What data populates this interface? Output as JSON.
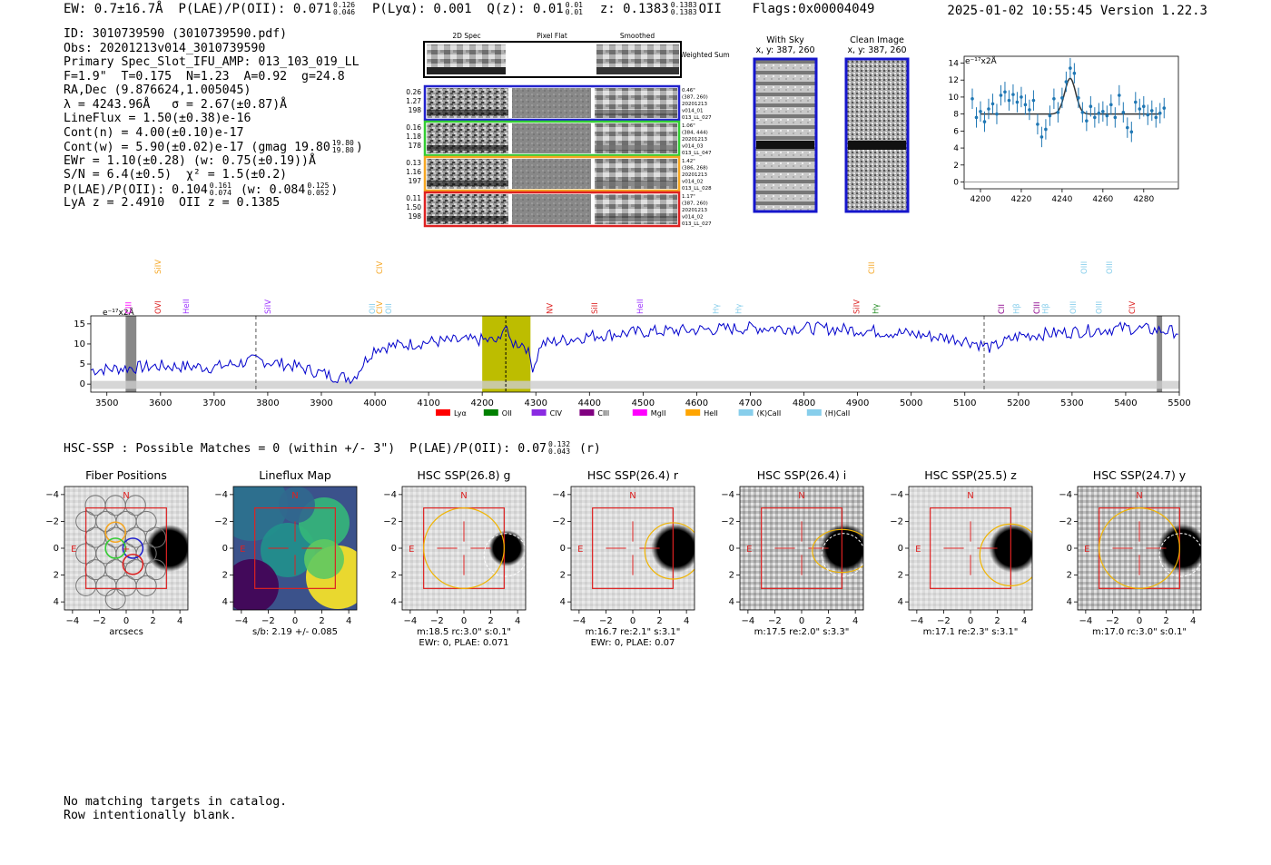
{
  "header": {
    "ew_label": "EW: 0.7±16.7Å",
    "plae_label": "P(LAE)/P(OII): 0.071",
    "plae_hi": "0.126",
    "plae_lo": "0.046",
    "plya_label": "P(Lyα): 0.001",
    "qz_label": "Q(z): 0.01",
    "qz_hi": "0.01",
    "qz_lo": "0.01",
    "z_label": "z: 0.1383",
    "z_hi": "0.1383",
    "z_lo": "0.1383",
    "z_line": "OII",
    "flags": "Flags:0x00004049",
    "timestamp": "2025-01-02 10:55:45",
    "version": "Version 1.22.3"
  },
  "info": {
    "id": "ID: 3010739590 (3010739590.pdf)",
    "obs": "Obs: 20201213v014_3010739590",
    "primary": "Primary Spec_Slot_IFU_AMP: 013_103_019_LL",
    "fit": "F=1.9\"  T=0.175  N=1.23  A=0.92  g=24.8",
    "radec": "RA,Dec (9.876624,1.005045)",
    "lambda": "λ = 4243.96Å   σ = 2.67(±0.87)Å",
    "lineflux": "LineFlux = 1.50(±0.38)e-16",
    "contn": "Cont(n) = 4.00(±0.10)e-17",
    "contw": "Cont(w) = 5.90(±0.02)e-17 (gmag 19.80",
    "contw_hi": "19.80",
    "contw_lo": "19.80",
    "ewr": "EWr = 1.10(±0.28) (w: 0.75(±0.19))Å",
    "sn": "S/N = 6.4(±0.5)  χ² = 1.5(±0.2)",
    "plae": "P(LAE)/P(OII): 0.104",
    "plae_hi": "0.161",
    "plae_lo": "0.074",
    "plae_w": "(w: 0.084",
    "plae_w_hi": "0.125",
    "plae_w_lo": "0.052",
    "lya": "LyA z = 2.4910  OII z = 0.1385"
  },
  "cutouts": {
    "col_headers": [
      "2D Spec",
      "Pixel Flat",
      "Smoothed"
    ],
    "weighted_sum": "Weighted Sum",
    "rows": [
      {
        "left": [
          "0.26",
          "1.27",
          "198"
        ],
        "right": [
          "0.46\"",
          "(387, 260)",
          "20201213",
          "v014_01",
          "013_LL_027"
        ],
        "color": "#2222cc"
      },
      {
        "left": [
          "0.16",
          "1.18",
          "178"
        ],
        "right": [
          "1.06\"",
          "(384, 444)",
          "20201213",
          "v014_03",
          "013_LL_047"
        ],
        "color": "#33cc33"
      },
      {
        "left": [
          "0.13",
          "1.16",
          "197"
        ],
        "right": [
          "1.42\"",
          "(386, 268)",
          "20201213",
          "v014_02",
          "013_LL_028"
        ],
        "color": "#f5a623"
      },
      {
        "left": [
          "0.11",
          "1.50",
          "198"
        ],
        "right": [
          "1.17\"",
          "(387, 260)",
          "20201213",
          "v014_02",
          "013_LL_027"
        ],
        "color": "#dd2222"
      }
    ],
    "with_sky_title": "With Sky",
    "with_sky_coords": "x, y: 387, 260",
    "clean_title": "Clean Image",
    "clean_coords": "x, y: 387, 260"
  },
  "fit_plot": {
    "unit": "e⁻¹⁷x2Å",
    "x_ticks": [
      "4200",
      "4220",
      "4240",
      "4260",
      "4280"
    ],
    "y_ticks": [
      "0",
      "2",
      "4",
      "6",
      "8",
      "10",
      "12",
      "14"
    ],
    "xlim": [
      4192,
      4297
    ],
    "ylim": [
      -0.8,
      14.8
    ],
    "x": [
      4196,
      4198,
      4200,
      4202,
      4204,
      4206,
      4208,
      4210,
      4212,
      4214,
      4216,
      4218,
      4220,
      4222,
      4224,
      4226,
      4228,
      4230,
      4232,
      4234,
      4236,
      4238,
      4240,
      4242,
      4244,
      4246,
      4248,
      4250,
      4252,
      4254,
      4256,
      4258,
      4260,
      4262,
      4264,
      4266,
      4268,
      4270,
      4272,
      4274,
      4276,
      4278,
      4280,
      4282,
      4284,
      4286,
      4288,
      4290
    ],
    "y": [
      9.8,
      7.6,
      8.3,
      7.1,
      8.6,
      9.2,
      8.0,
      10.2,
      10.6,
      9.6,
      10.3,
      9.4,
      10.0,
      9.1,
      8.5,
      9.6,
      6.8,
      5.3,
      6.2,
      7.8,
      9.8,
      8.2,
      9.9,
      11.8,
      13.4,
      12.8,
      9.9,
      8.2,
      7.2,
      8.9,
      7.6,
      8.1,
      8.3,
      7.8,
      9.1,
      7.6,
      10.2,
      8.2,
      6.4,
      5.9,
      9.4,
      8.6,
      8.9,
      7.9,
      8.4,
      7.6,
      8.1,
      8.7
    ],
    "err": 1.2,
    "model_baseline": 8.0,
    "model_peak": 4.2,
    "model_center": 4243.96,
    "model_sigma": 2.67
  },
  "spectrum": {
    "unit": "e⁻¹⁷x2Å",
    "x_ticks": [
      "3500",
      "3600",
      "3700",
      "3800",
      "3900",
      "4000",
      "4100",
      "4200",
      "4300",
      "4400",
      "4500",
      "4600",
      "4700",
      "4800",
      "4900",
      "5000",
      "5100",
      "5200",
      "5300",
      "5400",
      "5500"
    ],
    "y_ticks": [
      "0",
      "5",
      "10",
      "15"
    ],
    "xlim": [
      3470,
      5500
    ],
    "ylim": [
      -2,
      17
    ],
    "highlight": [
      4200,
      4290
    ],
    "center": 4243.96,
    "dashed": [
      3778,
      5136
    ],
    "gray_bands": [
      [
        3535,
        3555
      ],
      [
        5458,
        5468
      ]
    ],
    "lines_top": [
      {
        "label": "SiIV",
        "x": 3595,
        "color": "#f5a623"
      },
      {
        "label": "CIV",
        "x": 4008,
        "color": "#f5a623"
      },
      {
        "label": "CIII",
        "x": 4926,
        "color": "#f5a623"
      },
      {
        "label": "OIII",
        "x": 5322,
        "color": "#87ceeb"
      },
      {
        "label": "OIII",
        "x": 5370,
        "color": "#87ceeb"
      }
    ],
    "lines_bottom": [
      {
        "label": "CIII",
        "x": 3540,
        "color": "#ff00ff"
      },
      {
        "label": "OVI",
        "x": 3595,
        "color": "#dd2222"
      },
      {
        "label": "HeII",
        "x": 3648,
        "color": "#9b30ff"
      },
      {
        "label": "SiIV",
        "x": 3800,
        "color": "#9b30ff"
      },
      {
        "label": "OII",
        "x": 3995,
        "color": "#87ceeb"
      },
      {
        "label": "CIV",
        "x": 4008,
        "color": "#f5a623"
      },
      {
        "label": "OII",
        "x": 4025,
        "color": "#87ceeb"
      },
      {
        "label": "NV",
        "x": 4326,
        "color": "#dd2222"
      },
      {
        "label": "SiII",
        "x": 4410,
        "color": "#dd2222"
      },
      {
        "label": "HeII",
        "x": 4494,
        "color": "#9b30ff"
      },
      {
        "label": "Hγ",
        "x": 4636,
        "color": "#87ceeb"
      },
      {
        "label": "Hγ",
        "x": 4678,
        "color": "#87ceeb"
      },
      {
        "label": "SiIV",
        "x": 4898,
        "color": "#dd2222"
      },
      {
        "label": "Hγ",
        "x": 4934,
        "color": "#228b22"
      },
      {
        "label": "CII",
        "x": 5168,
        "color": "#8b008b"
      },
      {
        "label": "Hβ",
        "x": 5196,
        "color": "#87ceeb"
      },
      {
        "label": "CIII",
        "x": 5234,
        "color": "#8b008b"
      },
      {
        "label": "Hβ",
        "x": 5250,
        "color": "#87ceeb"
      },
      {
        "label": "OIII",
        "x": 5302,
        "color": "#87ceeb"
      },
      {
        "label": "OIII",
        "x": 5350,
        "color": "#87ceeb"
      },
      {
        "label": "CIV",
        "x": 5412,
        "color": "#dd2222"
      }
    ],
    "legend": [
      {
        "label": "Lyα",
        "color": "#ff0000"
      },
      {
        "label": "OII",
        "color": "#008000"
      },
      {
        "label": "CIV",
        "color": "#8a2be2"
      },
      {
        "label": "CIII",
        "color": "#800080"
      },
      {
        "label": "MgII",
        "color": "#ff00ff"
      },
      {
        "label": "HeII",
        "color": "#ffa500"
      },
      {
        "label": "(K)CaII",
        "color": "#87ceeb"
      },
      {
        "label": "(H)CaII",
        "color": "#87ceeb"
      }
    ],
    "series_levels": [
      [
        3470,
        3.5
      ],
      [
        3600,
        4.5
      ],
      [
        3700,
        4.2
      ],
      [
        3780,
        6
      ],
      [
        3850,
        4.5
      ],
      [
        3920,
        2.0
      ],
      [
        3960,
        1.5
      ],
      [
        3980,
        5.5
      ],
      [
        4000,
        9
      ],
      [
        4100,
        10.5
      ],
      [
        4200,
        11
      ],
      [
        4280,
        10
      ],
      [
        4295,
        4
      ],
      [
        4310,
        10
      ],
      [
        4400,
        12
      ],
      [
        4500,
        13
      ],
      [
        4600,
        13.5
      ],
      [
        4700,
        14
      ],
      [
        4800,
        14
      ],
      [
        4900,
        13.5
      ],
      [
        5000,
        12.5
      ],
      [
        5100,
        11
      ],
      [
        5150,
        9
      ],
      [
        5200,
        12
      ],
      [
        5300,
        13
      ],
      [
        5400,
        14
      ],
      [
        5500,
        13
      ]
    ]
  },
  "hsc": {
    "summary": "HSC-SSP : Possible Matches = 0 (within +/- 3\")  P(LAE)/P(OII): 0.07",
    "summary_hi": "0.132",
    "summary_lo": "0.043",
    "summary_band": "(r)",
    "compass_n": "N",
    "compass_e": "E",
    "ticks": [
      "−4",
      "−2",
      "0",
      "2",
      "4"
    ],
    "panels": [
      {
        "title": "Fiber Positions",
        "caption1": "arcsecs",
        "caption2": ""
      },
      {
        "title": "Lineflux Map",
        "caption1": "s/b: 2.19 +/- 0.085",
        "caption2": ""
      },
      {
        "title": "HSC SSP(26.8) g",
        "caption1": "m:18.5 rc:3.0\"  s:0.1\"",
        "caption2": "EWr: 0, PLAE: 0.071"
      },
      {
        "title": "HSC SSP(26.4) r",
        "caption1": "m:16.7  re:2.1\"  s:3.1\"",
        "caption2": "EWr: 0, PLAE: 0.07"
      },
      {
        "title": "HSC SSP(26.4) i",
        "caption1": "m:17.5  re:2.0\"  s:3.3\"",
        "caption2": ""
      },
      {
        "title": "HSC SSP(25.5) z",
        "caption1": "m:17.1  re:2.3\"  s:3.1\"",
        "caption2": ""
      },
      {
        "title": "HSC SSP(24.7) y",
        "caption1": "m:17.0 rc:3.0\"  s:0.1\"",
        "caption2": ""
      }
    ]
  },
  "notes": {
    "line1": "No matching targets in catalog.",
    "line2": "Row intentionally blank."
  }
}
